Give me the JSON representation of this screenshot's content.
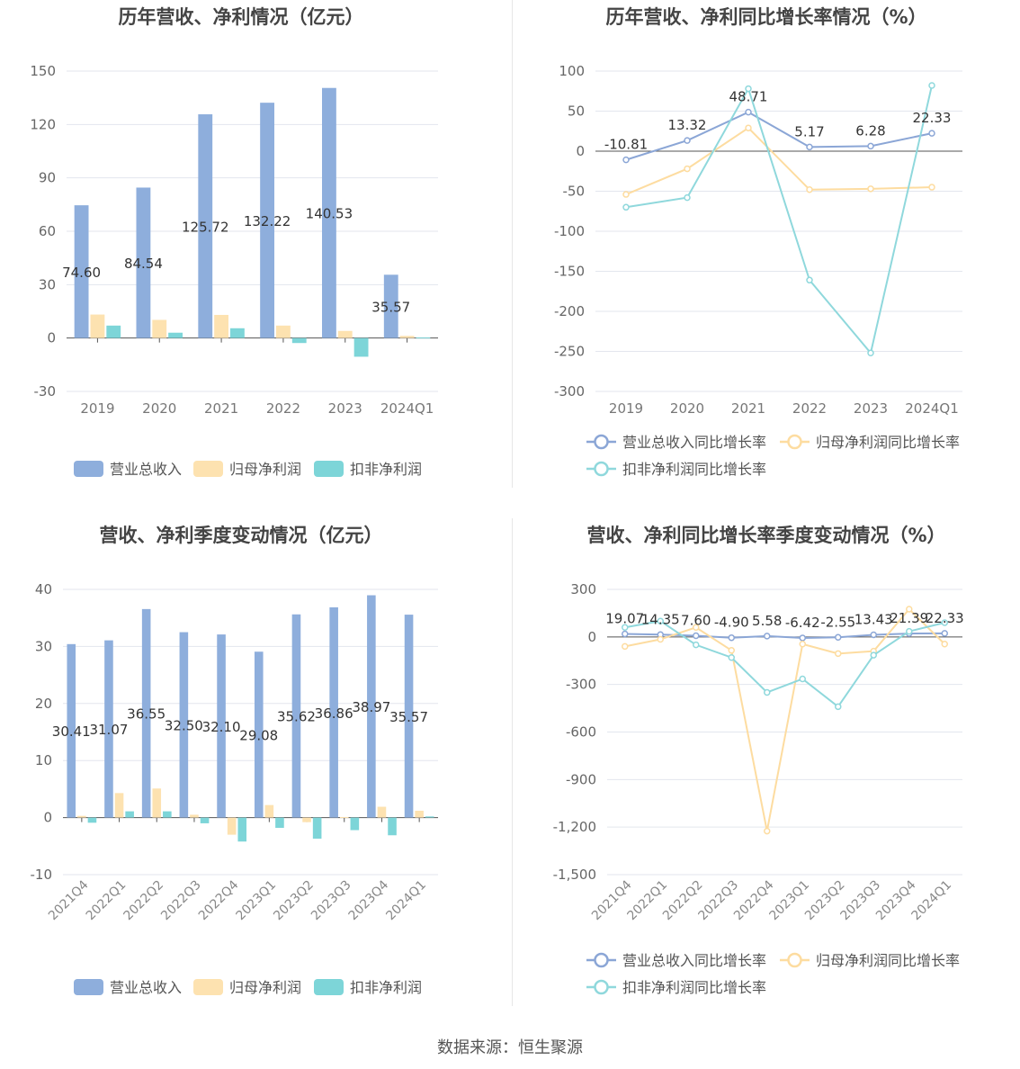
{
  "footer": {
    "source": "数据来源：恒生聚源"
  },
  "colors": {
    "revenue": "#8eaedc",
    "parent_profit": "#fde2b0",
    "deducted_profit": "#7dd5d8",
    "revenue_line": "#8ba6d6",
    "parent_line": "#fddca0",
    "deducted_line": "#8fd8dc"
  },
  "chart_data": [
    {
      "type": "bar",
      "title": "历年营收、净利情况（亿元）",
      "categories": [
        "2019",
        "2020",
        "2021",
        "2022",
        "2023",
        "2024Q1"
      ],
      "ylim": [
        -30,
        150
      ],
      "yticks": [
        -30,
        0,
        30,
        60,
        90,
        120,
        150
      ],
      "series": [
        {
          "name": "营业总收入",
          "values": [
            74.6,
            84.54,
            125.72,
            132.22,
            140.53,
            35.57
          ],
          "labels": [
            "74.60",
            "84.54",
            "125.72",
            "132.22",
            "140.53",
            "35.57"
          ]
        },
        {
          "name": "归母净利润",
          "values": [
            13.2,
            10.2,
            13.0,
            7.0,
            4.0,
            1.2
          ]
        },
        {
          "name": "扣非净利润",
          "values": [
            7.0,
            3.0,
            5.5,
            -2.8,
            -10.5,
            0.3
          ]
        }
      ],
      "legend": "bottom",
      "grid": true
    },
    {
      "type": "line",
      "title": "历年营收、净利同比增长率情况（%）",
      "categories": [
        "2019",
        "2020",
        "2021",
        "2022",
        "2023",
        "2024Q1"
      ],
      "ylim": [
        -300,
        100
      ],
      "yticks": [
        -300,
        -250,
        -200,
        -150,
        -100,
        -50,
        0,
        50,
        100
      ],
      "series": [
        {
          "name": "营业总收入同比增长率",
          "values": [
            -10.81,
            13.32,
            48.71,
            5.17,
            6.28,
            22.33
          ],
          "labels": [
            "-10.81",
            "13.32",
            "48.71",
            "5.17",
            "6.28",
            "22.33"
          ]
        },
        {
          "name": "归母净利润同比增长率",
          "values": [
            -54,
            -22,
            29,
            -48,
            -47,
            -45
          ]
        },
        {
          "name": "扣非净利润同比增长率",
          "values": [
            -70,
            -58,
            78,
            -161,
            -252,
            82
          ]
        }
      ],
      "legend": "bottom",
      "grid": true
    },
    {
      "type": "bar",
      "title": "营收、净利季度变动情况（亿元）",
      "categories": [
        "2021Q4",
        "2022Q1",
        "2022Q2",
        "2022Q3",
        "2022Q4",
        "2023Q1",
        "2023Q2",
        "2023Q3",
        "2023Q4",
        "2024Q1"
      ],
      "ylim": [
        -10,
        40
      ],
      "yticks": [
        -10,
        0,
        10,
        20,
        30,
        40
      ],
      "series": [
        {
          "name": "营业总收入",
          "values": [
            30.41,
            31.07,
            36.55,
            32.5,
            32.1,
            29.08,
            35.62,
            36.86,
            38.97,
            35.57
          ],
          "labels": [
            "30.41",
            "31.07",
            "36.55",
            "32.50",
            "32.10",
            "29.08",
            "35.62",
            "36.86",
            "38.97",
            "35.57"
          ]
        },
        {
          "name": "归母净利润",
          "values": [
            0.3,
            4.3,
            5.1,
            0.5,
            -3.0,
            2.2,
            -0.8,
            0.1,
            1.9,
            1.2
          ]
        },
        {
          "name": "扣非净利润",
          "values": [
            -0.9,
            1.1,
            1.1,
            -1.0,
            -4.2,
            -1.8,
            -3.7,
            -2.2,
            -3.1,
            0.2
          ]
        }
      ],
      "legend": "bottom",
      "grid": true
    },
    {
      "type": "line",
      "title": "营收、净利同比增长率季度变动情况（%）",
      "categories": [
        "2021Q4",
        "2022Q1",
        "2022Q2",
        "2022Q3",
        "2022Q4",
        "2023Q1",
        "2023Q2",
        "2023Q3",
        "2023Q4",
        "2024Q1"
      ],
      "ylim": [
        -1500,
        300
      ],
      "yticks": [
        -1500,
        -1200,
        -900,
        -600,
        -300,
        0,
        300
      ],
      "series": [
        {
          "name": "营业总收入同比增长率",
          "values": [
            19.07,
            14.35,
            7.6,
            -4.9,
            5.58,
            -6.42,
            -2.55,
            13.43,
            21.39,
            22.33
          ],
          "labels": [
            "19.07",
            "14.35",
            "7.60",
            "-4.90",
            "5.58",
            "-6.42",
            "-2.55",
            "13.43",
            "21.39",
            "22.33"
          ]
        },
        {
          "name": "归母净利润同比增长率",
          "values": [
            -60,
            -15,
            60,
            -85,
            -1225,
            -45,
            -105,
            -90,
            175,
            -45
          ]
        },
        {
          "name": "扣非净利润同比增长率",
          "values": [
            60,
            100,
            -50,
            -130,
            -350,
            -265,
            -440,
            -115,
            35,
            90
          ]
        }
      ],
      "legend": "bottom",
      "grid": true
    }
  ]
}
